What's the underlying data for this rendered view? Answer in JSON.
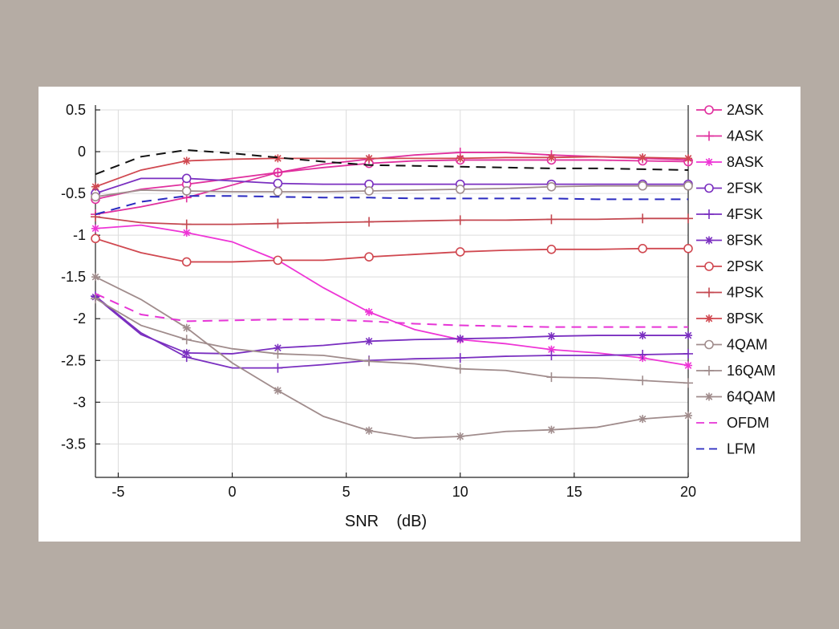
{
  "chart_data": {
    "type": "line",
    "title": "",
    "xlabel": "SNR    (dB)",
    "ylabel": "",
    "xlim": [
      -6,
      20
    ],
    "ylim": [
      -3.9,
      0.5
    ],
    "xticks": [
      -5,
      0,
      5,
      10,
      15,
      20
    ],
    "xtick_labels": [
      "-5",
      "0",
      "5",
      "10",
      "15",
      "20"
    ],
    "yticks": [
      0.5,
      0,
      -0.5,
      -1,
      -1.5,
      -2,
      -2.5,
      -3,
      -3.5
    ],
    "ytick_labels": [
      "0.5",
      "0",
      "-0.5",
      "-1",
      "-1.5",
      "-2",
      "-2.5",
      "-3",
      "-3.5"
    ],
    "grid": true,
    "legend_position": "right",
    "x": [
      -6,
      -4,
      -2,
      0,
      2,
      4,
      6,
      8,
      10,
      12,
      14,
      16,
      18,
      20
    ],
    "series": [
      {
        "name": "2ASK",
        "color": "#e0309e",
        "marker": "circle",
        "dash": "solid",
        "values": [
          -0.57,
          -0.45,
          -0.39,
          -0.32,
          -0.25,
          -0.19,
          -0.14,
          -0.11,
          -0.1,
          -0.1,
          -0.1,
          -0.1,
          -0.11,
          -0.12
        ]
      },
      {
        "name": "4ASK",
        "color": "#e0309e",
        "marker": "plus",
        "dash": "solid",
        "values": [
          -0.75,
          -0.66,
          -0.55,
          -0.4,
          -0.25,
          -0.15,
          -0.09,
          -0.04,
          -0.01,
          -0.01,
          -0.04,
          -0.06,
          -0.08,
          -0.1
        ]
      },
      {
        "name": "8ASK",
        "color": "#ee35d6",
        "marker": "star",
        "dash": "solid",
        "values": [
          -0.92,
          -0.88,
          -0.97,
          -1.08,
          -1.3,
          -1.63,
          -1.92,
          -2.13,
          -2.25,
          -2.3,
          -2.37,
          -2.41,
          -2.47,
          -2.56
        ]
      },
      {
        "name": "2FSK",
        "color": "#7a2fc0",
        "marker": "circle",
        "dash": "solid",
        "values": [
          -0.5,
          -0.32,
          -0.32,
          -0.35,
          -0.38,
          -0.39,
          -0.39,
          -0.39,
          -0.39,
          -0.39,
          -0.39,
          -0.39,
          -0.39,
          -0.39
        ]
      },
      {
        "name": "4FSK",
        "color": "#7a2fc0",
        "marker": "plus",
        "dash": "solid",
        "values": [
          -1.73,
          -2.17,
          -2.46,
          -2.59,
          -2.59,
          -2.55,
          -2.5,
          -2.48,
          -2.47,
          -2.45,
          -2.44,
          -2.44,
          -2.43,
          -2.42
        ]
      },
      {
        "name": "8FSK",
        "color": "#7a2fc0",
        "marker": "star",
        "dash": "solid",
        "values": [
          -1.74,
          -2.19,
          -2.41,
          -2.42,
          -2.35,
          -2.32,
          -2.27,
          -2.25,
          -2.24,
          -2.23,
          -2.21,
          -2.2,
          -2.2,
          -2.2
        ]
      },
      {
        "name": "2PSK",
        "color": "#d04850",
        "marker": "circle",
        "dash": "solid",
        "values": [
          -1.04,
          -1.21,
          -1.32,
          -1.32,
          -1.3,
          -1.3,
          -1.26,
          -1.23,
          -1.2,
          -1.18,
          -1.17,
          -1.17,
          -1.16,
          -1.16
        ]
      },
      {
        "name": "4PSK",
        "color": "#c44850",
        "marker": "plus",
        "dash": "solid",
        "values": [
          -0.78,
          -0.85,
          -0.87,
          -0.87,
          -0.86,
          -0.85,
          -0.84,
          -0.83,
          -0.82,
          -0.82,
          -0.81,
          -0.81,
          -0.8,
          -0.8
        ]
      },
      {
        "name": "8PSK",
        "color": "#d04850",
        "marker": "star",
        "dash": "solid",
        "values": [
          -0.42,
          -0.22,
          -0.11,
          -0.09,
          -0.08,
          -0.08,
          -0.08,
          -0.08,
          -0.08,
          -0.07,
          -0.07,
          -0.06,
          -0.07,
          -0.08
        ]
      },
      {
        "name": "4QAM",
        "color": "#a08c8c",
        "marker": "circle",
        "dash": "solid",
        "values": [
          -0.54,
          -0.46,
          -0.47,
          -0.48,
          -0.48,
          -0.48,
          -0.47,
          -0.46,
          -0.45,
          -0.44,
          -0.42,
          -0.41,
          -0.41,
          -0.41
        ]
      },
      {
        "name": "16QAM",
        "color": "#a08c8c",
        "marker": "plus",
        "dash": "solid",
        "values": [
          -1.76,
          -2.08,
          -2.25,
          -2.36,
          -2.42,
          -2.44,
          -2.51,
          -2.54,
          -2.6,
          -2.62,
          -2.7,
          -2.71,
          -2.74,
          -2.77
        ]
      },
      {
        "name": "64QAM",
        "color": "#a08c8c",
        "marker": "star",
        "dash": "solid",
        "values": [
          -1.5,
          -1.77,
          -2.11,
          -2.53,
          -2.86,
          -3.17,
          -3.34,
          -3.43,
          -3.41,
          -3.35,
          -3.33,
          -3.3,
          -3.2,
          -3.16
        ]
      },
      {
        "name": "OFDM",
        "color": "#e635d6",
        "marker": "none",
        "dash": "dashed",
        "values": [
          -1.7,
          -1.95,
          -2.03,
          -2.02,
          -2.01,
          -2.01,
          -2.03,
          -2.06,
          -2.08,
          -2.09,
          -2.1,
          -2.1,
          -2.1,
          -2.1
        ]
      },
      {
        "name": "LFM",
        "color": "#2a2ac0",
        "marker": "none",
        "dash": "dashed",
        "values": [
          -0.75,
          -0.6,
          -0.53,
          -0.53,
          -0.54,
          -0.55,
          -0.55,
          -0.56,
          -0.56,
          -0.56,
          -0.56,
          -0.57,
          -0.57,
          -0.57
        ]
      },
      {
        "color": "#111111",
        "marker": "none",
        "dash": "dashed",
        "values": [
          -0.27,
          -0.06,
          0.02,
          -0.02,
          -0.07,
          -0.12,
          -0.16,
          -0.17,
          -0.18,
          -0.19,
          -0.2,
          -0.2,
          -0.21,
          -0.22
        ]
      }
    ]
  }
}
